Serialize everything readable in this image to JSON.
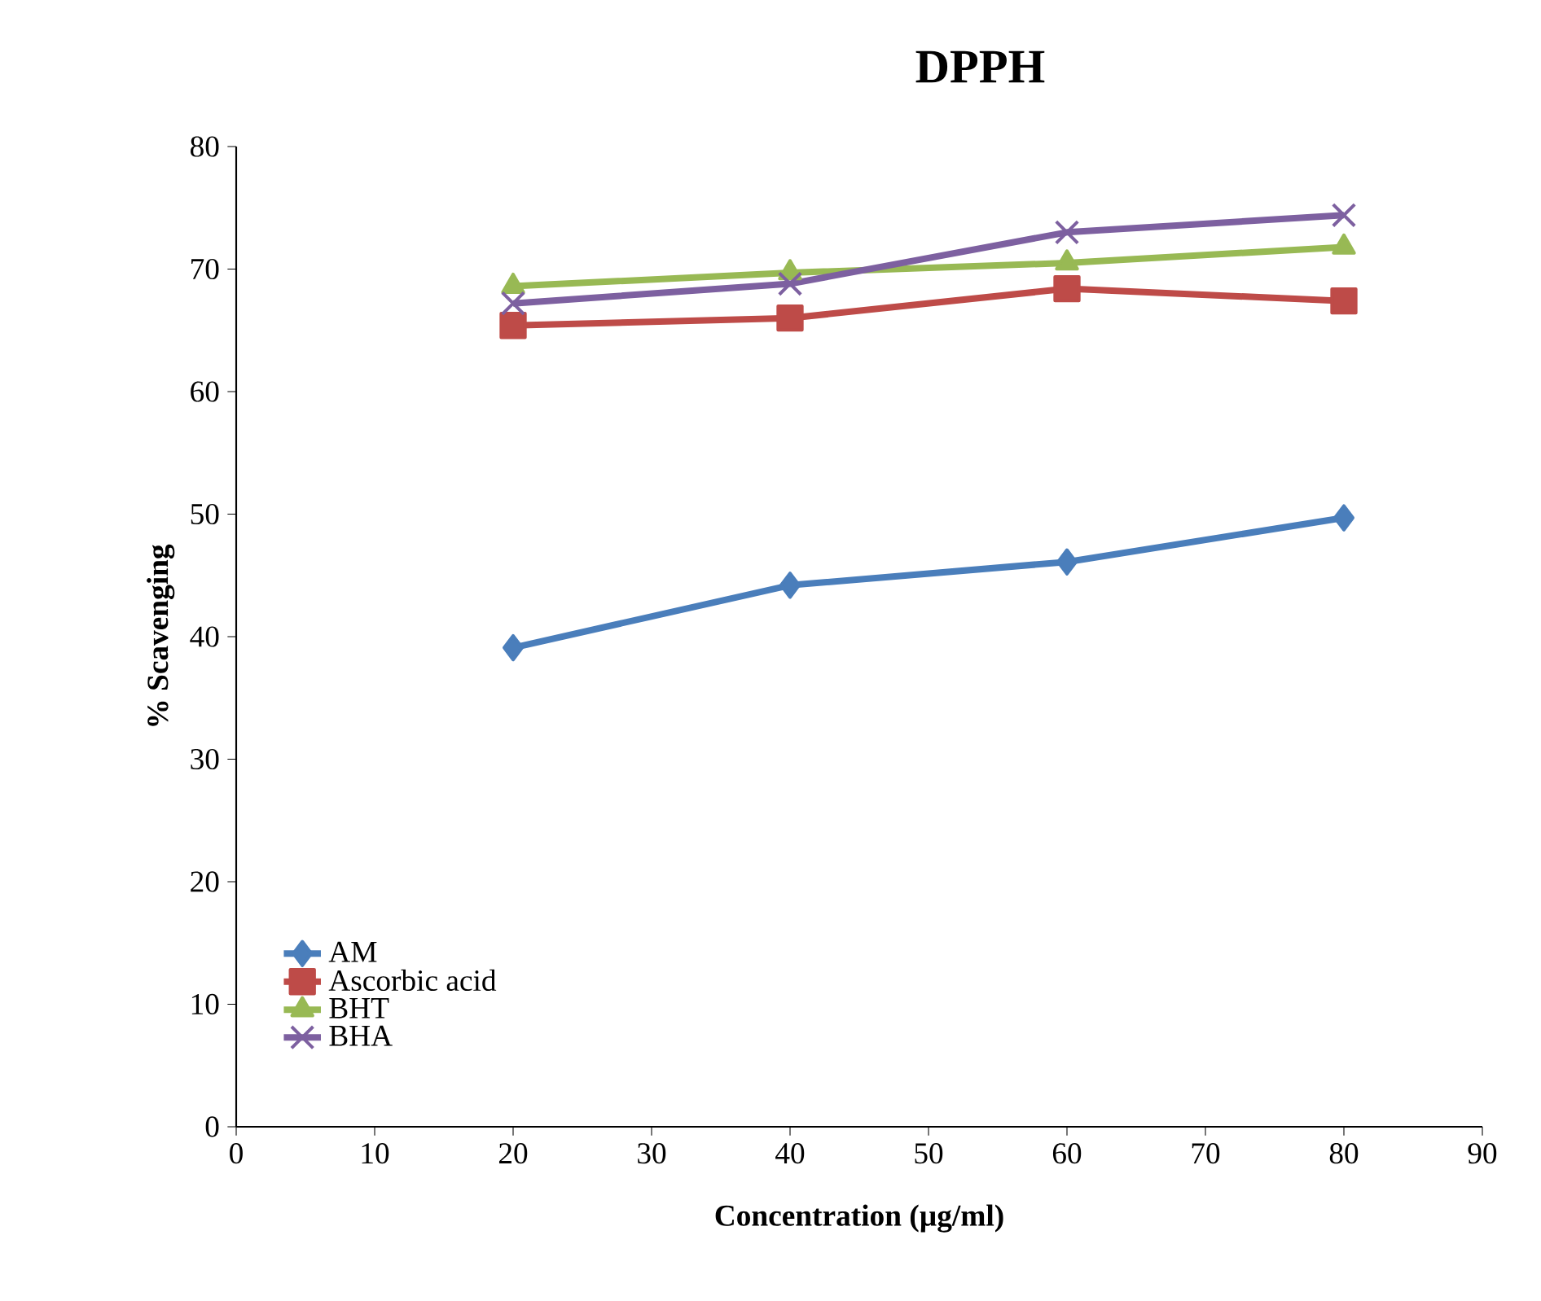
{
  "chart_data": {
    "type": "line",
    "title": "DPPH",
    "xlabel": "Concentration (µg/ml)",
    "ylabel": "% Scavenging",
    "xlim": [
      0,
      90
    ],
    "xticks": [
      0,
      10,
      20,
      30,
      40,
      50,
      60,
      70,
      80,
      90
    ],
    "ylim": [
      0,
      80
    ],
    "yticks": [
      0,
      10,
      20,
      30,
      40,
      50,
      60,
      70,
      80
    ],
    "grid": false,
    "legend": "bottom left",
    "line_style": "solid",
    "x": [
      20,
      40,
      60,
      80
    ],
    "series": [
      {
        "name": "AM",
        "color": "#4a7ebb",
        "marker": "diamond",
        "values": [
          39.1,
          44.2,
          46.1,
          49.7
        ]
      },
      {
        "name": "Ascorbic acid",
        "color": "#be4b48",
        "marker": "square",
        "values": [
          65.4,
          66.0,
          68.4,
          67.4
        ]
      },
      {
        "name": "BHT",
        "color": "#98b954",
        "marker": "triangle",
        "values": [
          68.6,
          69.7,
          70.5,
          71.8
        ]
      },
      {
        "name": "BHA",
        "color": "#7d60a0",
        "marker": "cross",
        "values": [
          67.2,
          68.8,
          73.0,
          74.4
        ]
      }
    ]
  }
}
